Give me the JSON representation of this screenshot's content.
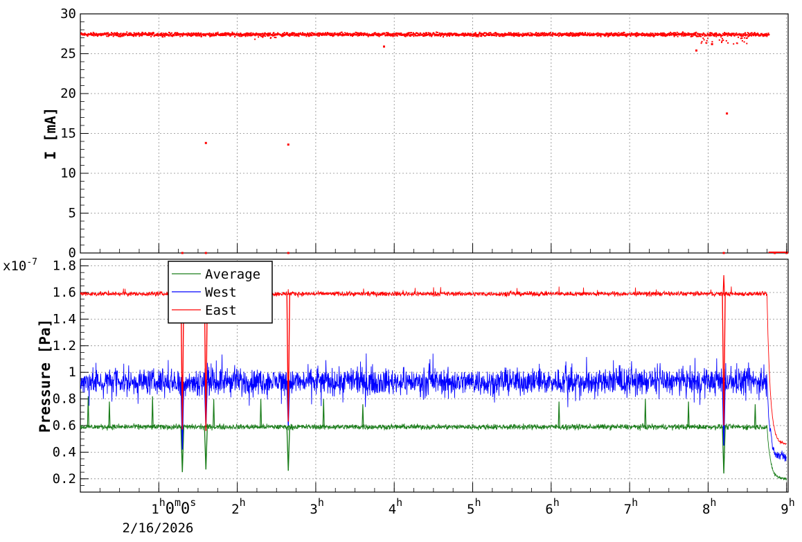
{
  "chart_data": [
    {
      "type": "scatter",
      "ylabel": "I [mA]",
      "ylim": [
        0,
        30
      ],
      "xlim": [
        0,
        9.02
      ],
      "y_ticks": [
        "0",
        "5",
        "10",
        "15",
        "20",
        "25",
        "30"
      ],
      "grid": true,
      "series": [
        {
          "color": "#ff0000",
          "band": {
            "x": [
              0.0,
              8.77
            ],
            "y_center": 27.5,
            "y_spread": 0.6
          },
          "outliers": [
            {
              "x": 1.6,
              "y": 13.8
            },
            {
              "x": 2.65,
              "y": 13.6
            },
            {
              "x": 3.87,
              "y": 25.9
            },
            {
              "x": 7.85,
              "y": 25.4
            },
            {
              "x": 8.05,
              "y": 26.2
            },
            {
              "x": 8.24,
              "y": 17.5
            },
            {
              "x": 1.3,
              "y": 0
            },
            {
              "x": 1.6,
              "y": 0
            },
            {
              "x": 2.65,
              "y": 0
            },
            {
              "x": 8.2,
              "y": 0
            },
            {
              "x": 8.85,
              "y": 0
            },
            {
              "x": 9.0,
              "y": 0
            }
          ]
        }
      ]
    },
    {
      "type": "line",
      "ylabel": "Pressure [Pa]",
      "y_multiplier": "x10",
      "y_exponent": "-7",
      "ylim": [
        0.1,
        1.85
      ],
      "xlim": [
        0,
        9.02
      ],
      "y_ticks": [
        "0.2",
        "0.4",
        "0.6",
        "0.8",
        "1",
        "1.2",
        "1.4",
        "1.6",
        "1.8"
      ],
      "grid": true,
      "legend": {
        "placement": "top-left"
      },
      "series": [
        {
          "name": "Average",
          "color": "#1a7d1a",
          "baseline": 0.59,
          "noise": 0.03,
          "dips": [
            {
              "x": 1.3,
              "y": 0.25
            },
            {
              "x": 1.6,
              "y": 0.27
            },
            {
              "x": 2.65,
              "y": 0.26
            },
            {
              "x": 8.2,
              "y": 0.24
            }
          ],
          "spikes": [
            {
              "x": 0.1,
              "y": 0.82
            },
            {
              "x": 0.37,
              "y": 0.78
            },
            {
              "x": 0.92,
              "y": 0.82
            },
            {
              "x": 1.7,
              "y": 0.8
            },
            {
              "x": 2.3,
              "y": 0.8
            },
            {
              "x": 3.1,
              "y": 0.8
            },
            {
              "x": 3.6,
              "y": 0.76
            },
            {
              "x": 6.1,
              "y": 0.78
            },
            {
              "x": 7.2,
              "y": 0.8
            },
            {
              "x": 7.75,
              "y": 0.78
            },
            {
              "x": 8.6,
              "y": 0.76
            }
          ],
          "tail": {
            "x_start": 8.75,
            "x_end": 9.0,
            "y_start": 0.6,
            "y_end": 0.2
          }
        },
        {
          "name": "West",
          "color": "#0000ff",
          "baseline": 0.93,
          "noise": 0.1,
          "dips": [
            {
              "x": 1.3,
              "y": 0.42
            },
            {
              "x": 1.6,
              "y": 0.58
            },
            {
              "x": 2.65,
              "y": 0.6
            },
            {
              "x": 8.2,
              "y": 0.45
            }
          ],
          "spikes": [],
          "tail": {
            "x_start": 8.75,
            "x_end": 9.0,
            "y_start": 0.92,
            "y_end": 0.36
          }
        },
        {
          "name": "East",
          "color": "#ff0000",
          "baseline": 1.59,
          "noise": 0.025,
          "dips": [
            {
              "x": 1.3,
              "y": 0.57
            },
            {
              "x": 1.6,
              "y": 0.56
            },
            {
              "x": 2.65,
              "y": 0.63
            },
            {
              "x": 8.2,
              "y": 0.6
            }
          ],
          "spikes": [
            {
              "x": 8.2,
              "y": 1.73
            }
          ],
          "tail": {
            "x_start": 8.75,
            "x_end": 9.0,
            "y_start": 1.58,
            "y_end": 0.46
          }
        }
      ]
    }
  ],
  "x_axis": {
    "ticks": [
      {
        "x": 1,
        "hours": "1",
        "rest": "0",
        "rest2": "0"
      },
      {
        "x": 2,
        "hours": "2"
      },
      {
        "x": 3,
        "hours": "3"
      },
      {
        "x": 4,
        "hours": "4"
      },
      {
        "x": 5,
        "hours": "5"
      },
      {
        "x": 6,
        "hours": "6"
      },
      {
        "x": 7,
        "hours": "7"
      },
      {
        "x": 8,
        "hours": "8"
      },
      {
        "x": 9,
        "hours": "9"
      }
    ],
    "unit_h": "h",
    "unit_m": "m",
    "unit_s": "s",
    "date": "2/16/2026"
  }
}
